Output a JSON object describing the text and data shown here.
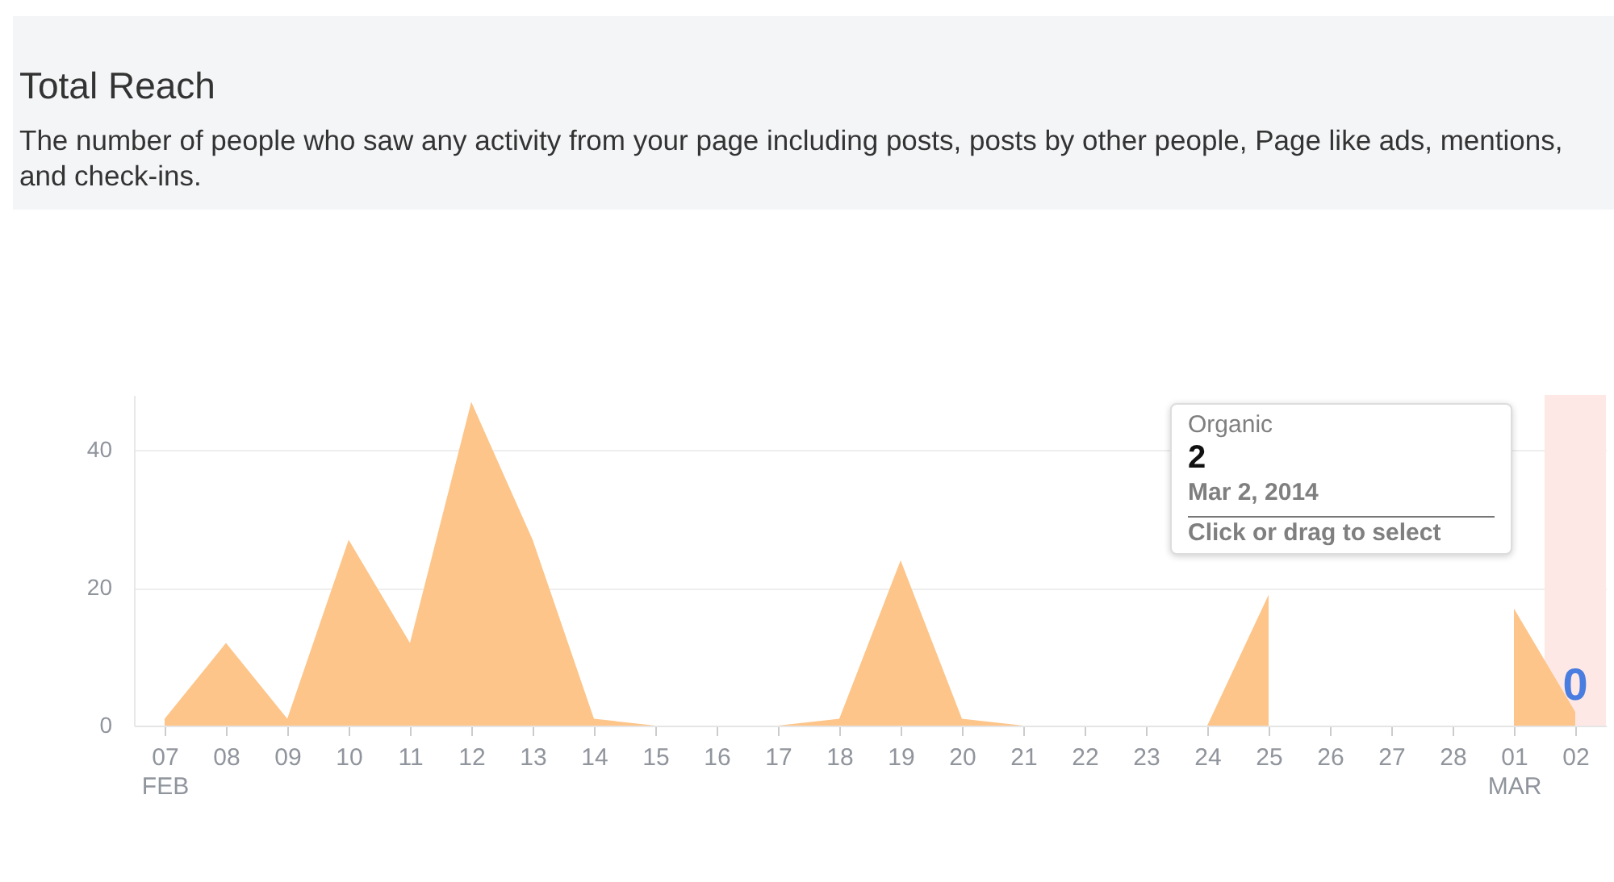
{
  "chart_data": {
    "type": "area",
    "title": "Total Reach",
    "subtitle": "The number of people who saw any activity from your page including posts, posts by other people, Page like ads, mentions, and check-ins.",
    "x": [
      "2014-02-07",
      "2014-02-08",
      "2014-02-09",
      "2014-02-10",
      "2014-02-11",
      "2014-02-12",
      "2014-02-13",
      "2014-02-14",
      "2014-02-15",
      "2014-02-16",
      "2014-02-17",
      "2014-02-18",
      "2014-02-19",
      "2014-02-20",
      "2014-02-21",
      "2014-02-22",
      "2014-02-23",
      "2014-02-24",
      "2014-02-25",
      "2014-02-26",
      "2014-02-27",
      "2014-02-28",
      "2014-03-01",
      "2014-03-02"
    ],
    "series": [
      {
        "color": "#fdc589",
        "values": [
          1,
          12,
          1,
          27,
          12,
          47,
          27,
          1,
          0,
          0,
          0,
          1,
          24,
          1,
          0,
          0,
          0,
          0,
          19,
          null,
          null,
          null,
          17,
          2
        ]
      }
    ],
    "xlim": [
      "2014-02-06T12:00",
      "2014-03-02T12:00"
    ],
    "xticks": [
      {
        "value": "2014-02-07",
        "label": "07\nFEB"
      },
      {
        "value": "2014-02-08",
        "label": "08"
      },
      {
        "value": "2014-02-09",
        "label": "09"
      },
      {
        "value": "2014-02-10",
        "label": "10"
      },
      {
        "value": "2014-02-11",
        "label": "11"
      },
      {
        "value": "2014-02-12",
        "label": "12"
      },
      {
        "value": "2014-02-13",
        "label": "13"
      },
      {
        "value": "2014-02-14",
        "label": "14"
      },
      {
        "value": "2014-02-15",
        "label": "15"
      },
      {
        "value": "2014-02-16",
        "label": "16"
      },
      {
        "value": "2014-02-17",
        "label": "17"
      },
      {
        "value": "2014-02-18",
        "label": "18"
      },
      {
        "value": "2014-02-19",
        "label": "19"
      },
      {
        "value": "2014-02-20",
        "label": "20"
      },
      {
        "value": "2014-02-21",
        "label": "21"
      },
      {
        "value": "2014-02-22",
        "label": "22"
      },
      {
        "value": "2014-02-23",
        "label": "23"
      },
      {
        "value": "2014-02-24",
        "label": "24"
      },
      {
        "value": "2014-02-25",
        "label": "25"
      },
      {
        "value": "2014-02-26",
        "label": "26"
      },
      {
        "value": "2014-02-27",
        "label": "27"
      },
      {
        "value": "2014-02-28",
        "label": "28"
      },
      {
        "value": "2014-03-01",
        "label": "01\nMAR"
      },
      {
        "value": "2014-03-02",
        "label": "02"
      }
    ],
    "ylim": [
      0,
      48
    ],
    "yticks": [
      0,
      20,
      40
    ],
    "grid": "y",
    "bands": [
      {
        "axis": "x",
        "from": "2014-03-01T12:00",
        "to": "2014-03-02T12:00",
        "color": "#fde8e5"
      }
    ],
    "annotations": [
      "Organic",
      "2",
      "Mar 2, 2014",
      "Click or drag to select",
      {
        "text": "0",
        "x": "2014-03-02",
        "y": 0
      }
    ]
  }
}
